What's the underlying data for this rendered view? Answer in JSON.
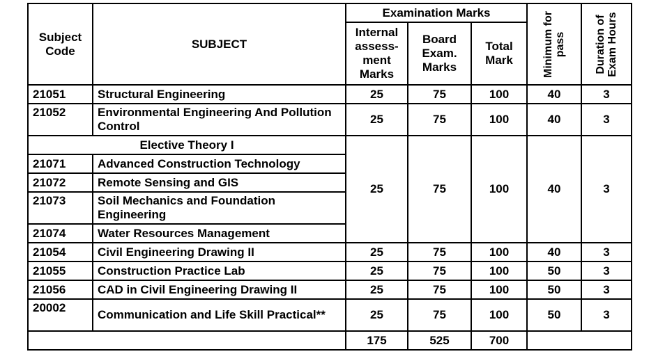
{
  "headers": {
    "subject_code": "Subject Code",
    "subject": "SUBJECT",
    "examination_marks": "Examination Marks",
    "internal": "Internal assess- ment Marks",
    "board": "Board Exam. Marks",
    "total": "Total Mark",
    "minimum": "Minimum for pass",
    "duration": "Duration of Exam Hours"
  },
  "rows_top": [
    {
      "code": "21051",
      "subject": "Structural Engineering",
      "internal": "25",
      "board": "75",
      "total": "100",
      "min": "40",
      "hours": "3"
    },
    {
      "code": "21052",
      "subject": "Environmental Engineering And Pollution Control",
      "internal": "25",
      "board": "75",
      "total": "100",
      "min": "40",
      "hours": "3"
    }
  ],
  "elective": {
    "title": "Elective Theory I",
    "internal": "25",
    "board": "75",
    "total": "100",
    "min": "40",
    "hours": "3",
    "items": [
      {
        "code": "21071",
        "subject": "Advanced Construction Technology"
      },
      {
        "code": "21072",
        "subject": "Remote Sensing and GIS"
      },
      {
        "code": "21073",
        "subject": "Soil Mechanics and Foundation Engineering"
      },
      {
        "code": "21074",
        "subject": "Water Resources Management"
      }
    ]
  },
  "rows_bottom": [
    {
      "code": "21054",
      "subject": "Civil Engineering Drawing II",
      "internal": "25",
      "board": "75",
      "total": "100",
      "min": "40",
      "hours": "3"
    },
    {
      "code": "21055",
      "subject": "Construction Practice Lab",
      "internal": "25",
      "board": "75",
      "total": "100",
      "min": "50",
      "hours": "3"
    },
    {
      "code": "21056",
      "subject": "CAD in Civil Engineering Drawing II",
      "internal": "25",
      "board": "75",
      "total": "100",
      "min": "50",
      "hours": "3"
    },
    {
      "code": "20002",
      "subject": "Communication and Life Skill Practical**",
      "internal": "25",
      "board": "75",
      "total": "100",
      "min": "50",
      "hours": "3"
    }
  ],
  "totals": {
    "internal": "175",
    "board": "525",
    "total": "700"
  }
}
